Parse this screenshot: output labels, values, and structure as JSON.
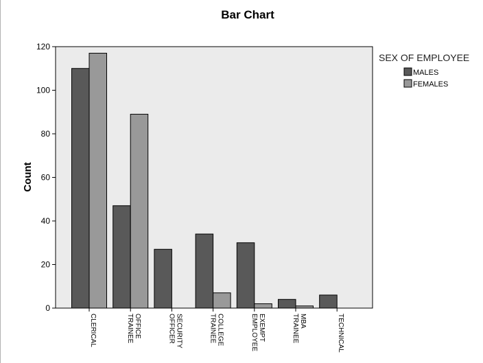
{
  "chart_data": {
    "type": "bar",
    "title": "Bar Chart",
    "xlabel": "",
    "ylabel": "Count",
    "ylim": [
      0,
      120
    ],
    "yticks": [
      "0",
      "20",
      "40",
      "60",
      "80",
      "100",
      "120"
    ],
    "categories": [
      [
        "CLERICAL"
      ],
      [
        "OFFICE",
        "TRAINEE"
      ],
      [
        "SECURITY",
        "OFFICER"
      ],
      [
        "COLLEGE",
        "TRAINEE"
      ],
      [
        "EXEMPT",
        "EMPLOYEE"
      ],
      [
        "MBA",
        "TRAINEE"
      ],
      [
        "TECHNICAL"
      ]
    ],
    "series": [
      {
        "name": "MALES",
        "color": "#595959",
        "values": [
          110,
          47,
          27,
          34,
          30,
          4,
          6
        ]
      },
      {
        "name": "FEMALES",
        "color": "#999999",
        "values": [
          117,
          89,
          0,
          7,
          2,
          1,
          0
        ]
      }
    ],
    "legend_title": "SEX OF EMPLOYEE",
    "legend_position": "right",
    "grid": false,
    "plot_background": "#ebebeb"
  }
}
